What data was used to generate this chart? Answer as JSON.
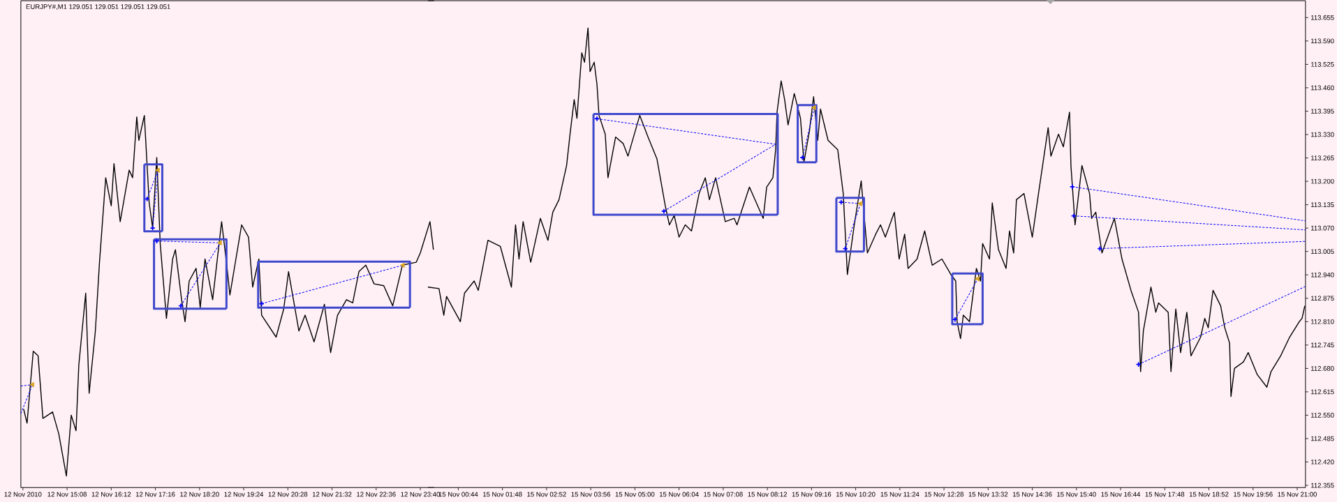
{
  "chart_data": [
    {
      "type": "line",
      "title": "EURJPY#,M1  129.051 129.051 129.051 129.051",
      "xlim": [
        "2010-11-12T14:01",
        "2010-11-13T00:00"
      ],
      "ylim": [
        112.349,
        113.702
      ],
      "tick_labels": "x",
      "xticks": [
        {
          "value": "2010-11-12T14:04",
          "label": "12 Nov 2010"
        },
        {
          "value": "2010-11-12T15:08",
          "label": "12 Nov 15:08"
        },
        {
          "value": "2010-11-12T16:12",
          "label": "12 Nov 16:12"
        },
        {
          "value": "2010-11-12T17:16",
          "label": "12 Nov 17:16"
        },
        {
          "value": "2010-11-12T18:20",
          "label": "12 Nov 18:20"
        },
        {
          "value": "2010-11-12T19:24",
          "label": "12 Nov 19:24"
        },
        {
          "value": "2010-11-12T20:28",
          "label": "12 Nov 20:28"
        },
        {
          "value": "2010-11-12T21:32",
          "label": "12 Nov 21:32"
        },
        {
          "value": "2010-11-12T22:36",
          "label": "12 Nov 22:36"
        },
        {
          "value": "2010-11-12T23:40",
          "label": "12 Nov 23:40"
        }
      ],
      "series": [
        {
          "color": "#000000",
          "x": [
            "2010-11-12T14:05",
            "2010-11-12T14:10",
            "2010-11-12T14:19",
            "2010-11-12T14:26",
            "2010-11-12T14:33",
            "2010-11-12T14:47",
            "2010-11-12T14:56",
            "2010-11-12T15:07",
            "2010-11-12T15:14",
            "2010-11-12T15:21",
            "2010-11-12T15:25",
            "2010-11-12T15:35",
            "2010-11-12T15:40",
            "2010-11-12T15:49",
            "2010-11-12T15:55",
            "2010-11-12T16:04",
            "2010-11-12T16:12",
            "2010-11-12T16:16",
            "2010-11-12T16:25",
            "2010-11-12T16:38",
            "2010-11-12T16:43",
            "2010-11-12T16:49",
            "2010-11-12T16:52",
            "2010-11-12T17:00",
            "2010-11-12T17:07",
            "2010-11-12T17:12",
            "2010-11-12T17:18",
            "2010-11-12T17:23",
            "2010-11-12T17:32",
            "2010-11-12T17:41",
            "2010-11-12T17:45",
            "2010-11-12T17:54",
            "2010-11-12T17:59",
            "2010-11-12T18:05",
            "2010-11-12T18:15",
            "2010-11-12T18:21",
            "2010-11-12T18:28",
            "2010-11-12T18:39",
            "2010-11-12T18:52",
            "2010-11-12T19:00",
            "2010-11-12T19:04",
            "2010-11-12T19:21",
            "2010-11-12T19:31",
            "2010-11-12T19:37",
            "2010-11-12T19:46",
            "2010-11-12T19:50",
            "2010-11-12T20:11",
            "2010-11-12T20:22",
            "2010-11-12T20:29",
            "2010-11-12T20:44",
            "2010-11-12T20:53",
            "2010-11-12T21:06",
            "2010-11-12T21:21",
            "2010-11-12T21:30",
            "2010-11-12T21:40",
            "2010-11-12T21:53",
            "2010-11-12T22:02",
            "2010-11-12T22:11",
            "2010-11-12T22:21",
            "2010-11-12T22:33",
            "2010-11-12T22:47",
            "2010-11-12T23:00",
            "2010-11-12T23:14",
            "2010-11-12T23:34",
            "2010-11-12T23:40",
            "2010-11-12T23:54",
            "2010-11-12T23:59"
          ],
          "values": [
            112.567,
            112.528,
            112.728,
            112.715,
            112.541,
            112.559,
            112.498,
            112.381,
            112.55,
            112.507,
            112.689,
            112.889,
            112.611,
            112.784,
            112.975,
            113.21,
            113.132,
            113.249,
            113.088,
            113.231,
            113.21,
            113.379,
            113.314,
            113.383,
            113.14,
            113.071,
            113.266,
            113.027,
            112.819,
            112.984,
            113.01,
            112.871,
            112.81,
            112.923,
            112.958,
            112.849,
            112.984,
            112.871,
            113.088,
            112.958,
            112.884,
            113.079,
            113.045,
            112.906,
            112.984,
            112.828,
            112.767,
            112.845,
            112.949,
            112.784,
            112.828,
            112.754,
            112.858,
            112.724,
            112.828,
            112.871,
            112.862,
            112.949,
            112.967,
            112.915,
            112.91,
            112.854,
            112.967,
            112.975,
            113.001,
            113.088,
            113.01
          ]
        },
        {
          "color": "#3f48cc",
          "x": [
            "2010-11-12T17:00",
            "2010-11-12T17:26",
            "2010-11-12T17:26"
          ],
          "values": [
            113.247,
            113.247,
            113.061
          ]
        },
        {
          "color": "#3f48cc",
          "x": [
            "2010-11-12T17:26",
            "2010-11-12T17:00",
            "2010-11-12T17:00"
          ],
          "values": [
            113.061,
            113.061,
            113.247
          ]
        },
        {
          "color": "#3f48cc",
          "x": [
            "2010-11-12T17:14",
            "2010-11-12T18:59",
            "2010-11-12T18:59"
          ],
          "values": [
            113.039,
            113.039,
            112.846
          ]
        },
        {
          "color": "#3f48cc",
          "x": [
            "2010-11-12T18:59",
            "2010-11-12T17:14",
            "2010-11-12T17:14"
          ],
          "values": [
            112.846,
            112.846,
            113.039
          ]
        },
        {
          "color": "#3f48cc",
          "x": [
            "2010-11-12T19:45",
            "2010-11-12T23:25",
            "2010-11-12T23:25"
          ],
          "values": [
            112.977,
            112.977,
            112.849
          ]
        },
        {
          "color": "#3f48cc",
          "x": [
            "2010-11-12T23:25",
            "2010-11-12T19:45",
            "2010-11-12T19:45"
          ],
          "values": [
            112.849,
            112.849,
            112.977
          ]
        },
        {
          "color": "#0000ff",
          "line_style": "dashed",
          "x": [
            "2010-11-12T14:01",
            "2010-11-12T14:18"
          ],
          "values": [
            112.631,
            112.635
          ]
        },
        {
          "color": "#0000ff",
          "line_style": "dashed",
          "x": [
            "2010-11-12T14:01",
            "2010-11-12T14:18"
          ],
          "values": [
            112.555,
            112.635
          ]
        },
        {
          "color": "#0000ff",
          "line_style": "dashed",
          "x": [
            "2010-11-12T17:04",
            "2010-11-12T17:20"
          ],
          "values": [
            113.151,
            113.231
          ]
        },
        {
          "color": "#0000ff",
          "line_style": "dashed",
          "x": [
            "2010-11-12T17:12",
            "2010-11-12T17:20"
          ],
          "values": [
            113.07,
            113.231
          ]
        },
        {
          "color": "#0000ff",
          "line_style": "dashed",
          "x": [
            "2010-11-12T17:18",
            "2010-11-12T18:50"
          ],
          "values": [
            113.034,
            113.029
          ]
        },
        {
          "color": "#0000ff",
          "line_style": "dashed",
          "x": [
            "2010-11-12T17:53",
            "2010-11-12T18:50"
          ],
          "values": [
            112.854,
            113.029
          ]
        },
        {
          "color": "#0000ff",
          "line_style": "dashed",
          "x": [
            "2010-11-12T19:50",
            "2010-11-12T23:15"
          ],
          "values": [
            112.86,
            112.967
          ]
        },
        {
          "type": "scatter",
          "color": "#0000ff",
          "marker": "cross",
          "x": [
            "2010-11-12T17:04",
            "2010-11-12T17:12",
            "2010-11-12T17:18",
            "2010-11-12T17:53",
            "2010-11-12T19:50"
          ],
          "values": [
            113.151,
            113.07,
            113.034,
            112.854,
            112.86
          ]
        },
        {
          "type": "scatter",
          "color": "#daa520",
          "marker": "triangle",
          "x": [
            "2010-11-12T14:18",
            "2010-11-12T17:20",
            "2010-11-12T18:50",
            "2010-11-12T23:15"
          ],
          "values": [
            112.635,
            113.231,
            113.029,
            112.967
          ]
        }
      ]
    },
    {
      "type": "line",
      "xlim": [
        "2010-11-15T00:00",
        "2010-11-15T21:12"
      ],
      "ylim": [
        112.349,
        113.702
      ],
      "xticks": [
        {
          "value": "2010-11-15T00:44",
          "label": "15 Nov 00:44"
        },
        {
          "value": "2010-11-15T01:48",
          "label": "15 Nov 01:48"
        },
        {
          "value": "2010-11-15T02:52",
          "label": "15 Nov 02:52"
        },
        {
          "value": "2010-11-15T03:56",
          "label": "15 Nov 03:56"
        },
        {
          "value": "2010-11-15T05:00",
          "label": "15 Nov 05:00"
        },
        {
          "value": "2010-11-15T06:04",
          "label": "15 Nov 06:04"
        },
        {
          "value": "2010-11-15T07:08",
          "label": "15 Nov 07:08"
        },
        {
          "value": "2010-11-15T08:12",
          "label": "15 Nov 08:12"
        },
        {
          "value": "2010-11-15T09:16",
          "label": "15 Nov 09:16"
        },
        {
          "value": "2010-11-15T10:20",
          "label": "15 Nov 10:20"
        },
        {
          "value": "2010-11-15T11:24",
          "label": "15 Nov 11:24"
        },
        {
          "value": "2010-11-15T12:28",
          "label": "15 Nov 12:28"
        },
        {
          "value": "2010-11-15T13:32",
          "label": "15 Nov 13:32"
        },
        {
          "value": "2010-11-15T14:36",
          "label": "15 Nov 14:36"
        },
        {
          "value": "2010-11-15T15:40",
          "label": "15 Nov 15:40"
        },
        {
          "value": "2010-11-15T16:44",
          "label": "15 Nov 16:44"
        },
        {
          "value": "2010-11-15T17:48",
          "label": "15 Nov 17:48"
        },
        {
          "value": "2010-11-15T18:52",
          "label": "15 Nov 18:52"
        },
        {
          "value": "2010-11-15T19:56",
          "label": "15 Nov 19:56"
        },
        {
          "value": "2010-11-15T21:00",
          "label": "15 Nov 21:00"
        }
      ],
      "yticks": [
        113.655,
        {
          "value": 113.59,
          "label": "113.590"
        },
        113.525,
        {
          "value": 113.46,
          "label": "113.460"
        },
        113.395,
        {
          "value": 113.33,
          "label": "113.330"
        },
        113.265,
        {
          "value": 113.2,
          "label": "113.200"
        },
        113.135,
        {
          "value": 113.07,
          "label": "113.070"
        },
        113.005,
        {
          "value": 112.94,
          "label": "112.940"
        },
        112.875,
        {
          "value": 112.81,
          "label": "112.810"
        },
        112.745,
        {
          "value": 112.68,
          "label": "112.680"
        },
        112.615,
        {
          "value": 112.55,
          "label": "112.550"
        },
        112.485,
        {
          "value": 112.42,
          "label": "112.420"
        },
        112.355
      ],
      "series": [
        {
          "color": "#000000",
          "x": [
            "2010-11-15T00:00",
            "2010-11-15T00:16",
            "2010-11-15T00:23",
            "2010-11-15T00:27",
            "2010-11-15T00:47",
            "2010-11-15T00:53",
            "2010-11-15T01:07",
            "2010-11-15T01:13",
            "2010-11-15T01:27",
            "2010-11-15T01:45",
            "2010-11-15T02:01",
            "2010-11-15T02:07",
            "2010-11-15T02:12",
            "2010-11-15T02:18",
            "2010-11-15T02:29",
            "2010-11-15T02:43",
            "2010-11-15T02:54",
            "2010-11-15T03:01",
            "2010-11-15T03:10",
            "2010-11-15T03:21",
            "2010-11-15T03:26",
            "2010-11-15T03:32",
            "2010-11-15T03:36",
            "2010-11-15T03:43",
            "2010-11-15T03:47",
            "2010-11-15T03:52",
            "2010-11-15T03:55",
            "2010-11-15T04:01",
            "2010-11-15T04:05",
            "2010-11-15T04:08",
            "2010-11-15T04:17",
            "2010-11-15T04:21",
            "2010-11-15T04:32",
            "2010-11-15T04:43",
            "2010-11-15T04:50",
            "2010-11-15T05:07",
            "2010-11-15T05:19",
            "2010-11-15T05:32",
            "2010-11-15T05:44",
            "2010-11-15T05:50",
            "2010-11-15T05:57",
            "2010-11-15T06:04",
            "2010-11-15T06:13",
            "2010-11-15T06:22",
            "2010-11-15T06:33",
            "2010-11-15T06:42",
            "2010-11-15T06:48",
            "2010-11-15T06:57",
            "2010-11-15T07:11",
            "2010-11-15T07:24",
            "2010-11-15T07:28",
            "2010-11-15T07:46",
            "2010-11-15T08:00",
            "2010-11-15T08:06",
            "2010-11-15T08:11",
            "2010-11-15T08:20",
            "2010-11-15T08:24",
            "2010-11-15T08:26",
            "2010-11-15T08:32",
            "2010-11-15T08:37",
            "2010-11-15T08:42",
            "2010-11-15T08:51",
            "2010-11-15T09:00",
            "2010-11-15T09:05",
            "2010-11-15T09:13",
            "2010-11-15T09:19",
            "2010-11-15T09:25",
            "2010-11-15T09:29",
            "2010-11-15T09:40",
            "2010-11-15T09:54",
            "2010-11-15T10:02",
            "2010-11-15T10:08",
            "2010-11-15T10:18",
            "2010-11-15T10:28",
            "2010-11-15T10:37",
            "2010-11-15T10:49",
            "2010-11-15T10:56",
            "2010-11-15T11:03",
            "2010-11-15T11:16",
            "2010-11-15T11:23",
            "2010-11-15T11:31",
            "2010-11-15T11:36",
            "2010-11-15T11:49",
            "2010-11-15T12:00",
            "2010-11-15T12:11",
            "2010-11-15T12:25",
            "2010-11-15T12:38",
            "2010-11-15T12:45",
            "2010-11-15T12:47",
            "2010-11-15T12:52",
            "2010-11-15T12:56",
            "2010-11-15T13:05",
            "2010-11-15T13:15",
            "2010-11-15T13:21",
            "2010-11-15T13:24",
            "2010-11-15T13:34",
            "2010-11-15T13:38",
            "2010-11-15T13:47",
            "2010-11-15T13:58",
            "2010-11-15T14:03",
            "2010-11-15T14:09",
            "2010-11-15T14:13",
            "2010-11-15T14:24",
            "2010-11-15T14:36",
            "2010-11-15T14:45",
            "2010-11-15T14:59",
            "2010-11-15T15:03",
            "2010-11-15T15:14",
            "2010-11-15T15:21",
            "2010-11-15T15:30",
            "2010-11-15T15:32",
            "2010-11-15T15:38",
            "2010-11-15T15:48",
            "2010-11-15T15:59",
            "2010-11-15T16:02",
            "2010-11-15T16:08",
            "2010-11-15T16:17",
            "2010-11-15T16:35",
            "2010-11-15T16:46",
            "2010-11-15T16:59",
            "2010-11-15T17:10",
            "2010-11-15T17:13",
            "2010-11-15T17:17",
            "2010-11-15T17:28",
            "2010-11-15T17:35",
            "2010-11-15T17:39",
            "2010-11-15T17:53",
            "2010-11-15T17:57",
            "2010-11-15T18:04",
            "2010-11-15T18:11",
            "2010-11-15T18:20",
            "2010-11-15T18:26",
            "2010-11-15T18:40",
            "2010-11-15T18:46",
            "2010-11-15T18:51",
            "2010-11-15T18:58",
            "2010-11-15T19:09",
            "2010-11-15T19:15",
            "2010-11-15T19:22",
            "2010-11-15T19:24",
            "2010-11-15T19:29",
            "2010-11-15T19:42",
            "2010-11-15T19:49",
            "2010-11-15T20:02",
            "2010-11-15T20:16",
            "2010-11-15T20:22",
            "2010-11-15T20:36",
            "2010-11-15T20:49",
            "2010-11-15T21:03",
            "2010-11-15T21:07",
            "2010-11-15T21:11"
          ],
          "values": [
            112.906,
            112.902,
            112.828,
            112.88,
            112.81,
            112.889,
            112.923,
            112.897,
            113.036,
            113.019,
            112.906,
            113.079,
            112.984,
            113.088,
            112.975,
            113.097,
            113.036,
            113.114,
            113.149,
            113.244,
            113.331,
            113.427,
            113.375,
            113.557,
            113.531,
            113.626,
            113.505,
            113.531,
            113.47,
            113.383,
            113.331,
            113.21,
            113.323,
            113.305,
            113.27,
            113.383,
            113.323,
            113.262,
            113.132,
            113.079,
            113.105,
            113.045,
            113.079,
            113.062,
            113.166,
            113.21,
            113.149,
            113.21,
            113.088,
            113.097,
            113.079,
            113.184,
            113.123,
            113.097,
            113.184,
            113.21,
            113.288,
            113.392,
            113.479,
            113.427,
            113.357,
            113.444,
            113.375,
            113.253,
            113.34,
            113.435,
            113.314,
            113.401,
            113.314,
            113.288,
            113.166,
            112.941,
            113.079,
            113.201,
            113.001,
            113.053,
            113.079,
            113.045,
            113.114,
            112.984,
            113.053,
            112.958,
            112.984,
            113.062,
            112.967,
            112.984,
            112.941,
            112.923,
            112.81,
            112.763,
            112.828,
            112.81,
            112.958,
            112.923,
            113.027,
            112.984,
            113.14,
            113.01,
            112.958,
            113.062,
            113.001,
            113.149,
            113.166,
            113.045,
            113.166,
            113.349,
            113.27,
            113.331,
            113.296,
            113.392,
            113.244,
            113.079,
            113.244,
            113.166,
            113.097,
            113.114,
            113.001,
            113.097,
            112.984,
            112.897,
            112.836,
            112.671,
            112.784,
            112.906,
            112.836,
            112.862,
            112.836,
            112.671,
            112.845,
            112.724,
            112.836,
            112.715,
            112.767,
            112.819,
            112.793,
            112.897,
            112.854,
            112.793,
            112.75,
            112.602,
            112.68,
            112.698,
            112.724,
            112.663,
            112.628,
            112.671,
            112.715,
            112.767,
            112.81,
            112.819,
            112.854
          ]
        },
        {
          "color": "#3f48cc",
          "x": [
            "2010-11-15T04:00",
            "2010-11-15T08:27",
            "2010-11-15T08:27"
          ],
          "values": [
            113.387,
            113.387,
            113.107
          ]
        },
        {
          "color": "#3f48cc",
          "x": [
            "2010-11-15T08:27",
            "2010-11-15T04:00",
            "2010-11-15T04:00"
          ],
          "values": [
            113.107,
            113.107,
            113.387
          ]
        },
        {
          "color": "#3f48cc",
          "x": [
            "2010-11-15T08:56",
            "2010-11-15T09:23",
            "2010-11-15T09:23"
          ],
          "values": [
            113.412,
            113.412,
            113.253
          ]
        },
        {
          "color": "#3f48cc",
          "x": [
            "2010-11-15T09:23",
            "2010-11-15T08:56",
            "2010-11-15T08:56"
          ],
          "values": [
            113.253,
            113.253,
            113.412
          ]
        },
        {
          "color": "#3f48cc",
          "x": [
            "2010-11-15T09:52",
            "2010-11-15T10:32",
            "2010-11-15T10:32"
          ],
          "values": [
            113.154,
            113.154,
            113.005
          ]
        },
        {
          "color": "#3f48cc",
          "x": [
            "2010-11-15T10:32",
            "2010-11-15T09:52",
            "2010-11-15T09:52"
          ],
          "values": [
            113.005,
            113.005,
            113.154
          ]
        },
        {
          "color": "#3f48cc",
          "x": [
            "2010-11-15T12:40",
            "2010-11-15T13:24",
            "2010-11-15T13:24"
          ],
          "values": [
            112.944,
            112.944,
            112.803
          ]
        },
        {
          "color": "#3f48cc",
          "x": [
            "2010-11-15T13:24",
            "2010-11-15T12:40",
            "2010-11-15T12:40"
          ],
          "values": [
            112.803,
            112.803,
            112.944
          ]
        },
        {
          "color": "#0000ff",
          "line_style": "dashed",
          "x": [
            "2010-11-15T04:05",
            "2010-11-15T08:24"
          ],
          "values": [
            113.374,
            113.303
          ]
        },
        {
          "color": "#0000ff",
          "line_style": "dashed",
          "x": [
            "2010-11-15T05:42",
            "2010-11-15T08:24"
          ],
          "values": [
            113.117,
            113.303
          ]
        },
        {
          "color": "#0000ff",
          "line_style": "dashed",
          "x": [
            "2010-11-15T09:03",
            "2010-11-15T09:20"
          ],
          "values": [
            113.266,
            113.405
          ]
        },
        {
          "color": "#0000ff",
          "line_style": "dashed",
          "x": [
            "2010-11-15T09:59",
            "2010-11-15T10:27"
          ],
          "values": [
            113.142,
            113.138
          ]
        },
        {
          "color": "#0000ff",
          "line_style": "dashed",
          "x": [
            "2010-11-15T10:05",
            "2010-11-15T10:27"
          ],
          "values": [
            113.013,
            113.138
          ]
        },
        {
          "color": "#0000ff",
          "line_style": "dashed",
          "x": [
            "2010-11-15T12:44",
            "2010-11-15T13:17"
          ],
          "values": [
            112.816,
            112.929
          ]
        },
        {
          "color": "#0000ff",
          "line_style": "dashed",
          "x": [
            "2010-11-15T15:34",
            "2010-11-15T21:12"
          ],
          "values": [
            113.185,
            113.09
          ]
        },
        {
          "color": "#0000ff",
          "line_style": "dashed",
          "x": [
            "2010-11-15T15:36",
            "2010-11-15T21:12"
          ],
          "values": [
            113.104,
            113.065
          ]
        },
        {
          "color": "#0000ff",
          "line_style": "dashed",
          "x": [
            "2010-11-15T16:14",
            "2010-11-15T21:12"
          ],
          "values": [
            113.013,
            113.033
          ]
        },
        {
          "color": "#0000ff",
          "line_style": "dashed",
          "x": [
            "2010-11-15T17:10",
            "2010-11-15T21:12"
          ],
          "values": [
            112.691,
            112.908
          ]
        },
        {
          "type": "scatter",
          "color": "#0000ff",
          "marker": "cross",
          "x": [
            "2010-11-15T04:05",
            "2010-11-15T05:42",
            "2010-11-15T09:03",
            "2010-11-15T09:59",
            "2010-11-15T10:05",
            "2010-11-15T12:44",
            "2010-11-15T15:34",
            "2010-11-15T15:36",
            "2010-11-15T16:14",
            "2010-11-15T17:10"
          ],
          "values": [
            113.374,
            113.117,
            113.266,
            113.142,
            113.013,
            112.816,
            113.185,
            113.104,
            113.013,
            112.691
          ]
        },
        {
          "type": "scatter",
          "color": "#daa520",
          "marker": "triangle",
          "x": [
            "2010-11-15T09:20",
            "2010-11-15T10:27",
            "2010-11-15T13:17"
          ],
          "values": [
            113.405,
            113.138,
            112.929
          ]
        }
      ]
    }
  ]
}
